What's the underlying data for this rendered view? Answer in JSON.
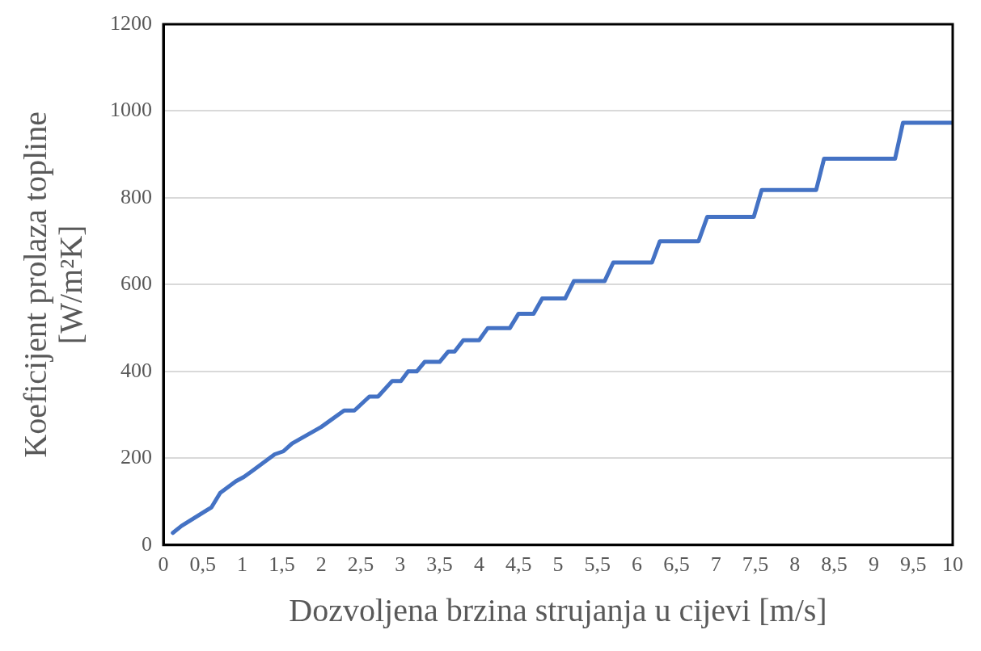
{
  "chart_data": {
    "type": "line",
    "xlabel": "Dozvoljena brzina strujanja u cijevi [m/s]",
    "ylabel": "Koeficijent prolaza topline [W/m²K]",
    "x": [
      0.12,
      0.23,
      0.61,
      0.72,
      0.92,
      1.02,
      1.12,
      1.41,
      1.52,
      1.63,
      2.0,
      2.29,
      2.42,
      2.61,
      2.72,
      2.9,
      3.01,
      3.1,
      3.21,
      3.31,
      3.5,
      3.61,
      3.69,
      3.8,
      4.0,
      4.11,
      4.39,
      4.5,
      4.69,
      4.8,
      5.09,
      5.2,
      5.59,
      5.7,
      6.19,
      6.29,
      6.78,
      6.89,
      7.48,
      7.58,
      8.27,
      8.37,
      9.27,
      9.37,
      10
    ],
    "series": [
      {
        "color": "#4472c4",
        "values": [
          28,
          44,
          87,
          120,
          147,
          157,
          170,
          209,
          216,
          234,
          272,
          310,
          310,
          342,
          342,
          378,
          378,
          400,
          400,
          422,
          422,
          446,
          446,
          472,
          472,
          500,
          500,
          533,
          533,
          568,
          568,
          608,
          608,
          651,
          651,
          700,
          700,
          756,
          756,
          818,
          818,
          890,
          890,
          973,
          973
        ]
      }
    ],
    "xlim": [
      0,
      10
    ],
    "xticks": [
      0,
      {
        "value": 0.5,
        "label": "0,5"
      },
      1,
      {
        "value": 1.5,
        "label": "1,5"
      },
      2,
      {
        "value": 2.5,
        "label": "2,5"
      },
      3,
      {
        "value": 3.5,
        "label": "3,5"
      },
      4,
      {
        "value": 4.5,
        "label": "4,5"
      },
      5,
      {
        "value": 5.5,
        "label": "5,5"
      },
      6,
      {
        "value": 6.5,
        "label": "6,5"
      },
      7,
      {
        "value": 7.5,
        "label": "7,5"
      },
      8,
      {
        "value": 8.5,
        "label": "8,5"
      },
      9,
      {
        "value": 9.5,
        "label": "9,5"
      },
      10
    ],
    "ylim": [
      0,
      1200
    ],
    "yticks": [
      0,
      200,
      400,
      600,
      800,
      1000,
      1200
    ],
    "grid": "y",
    "legend": false,
    "marker": "none",
    "line_style": "solid"
  }
}
